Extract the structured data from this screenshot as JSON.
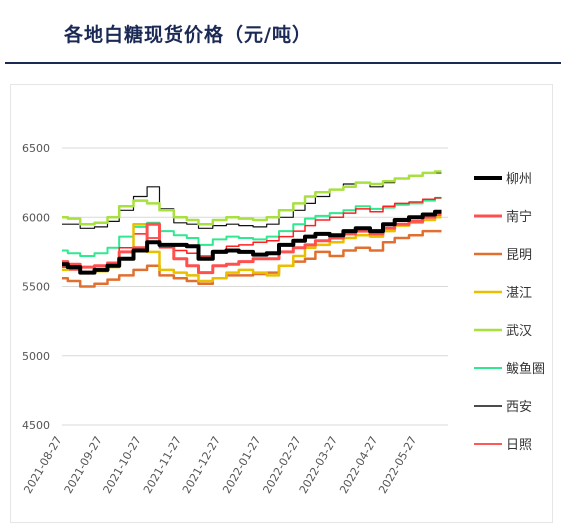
{
  "header": {
    "title": "各地白糖现货价格（元/吨）"
  },
  "chart_data": {
    "type": "line",
    "title": "各地白糖现货价格（元/吨）",
    "ylim": [
      4500,
      6500
    ],
    "yticks": [
      4500,
      5000,
      5500,
      6000,
      6500
    ],
    "xlim": [
      "2021-08-27",
      "2022-06-20"
    ],
    "xticks": [
      "2021-08-27",
      "2021-09-27",
      "2021-10-27",
      "2021-11-27",
      "2021-12-27",
      "2022-01-27",
      "2022-02-27",
      "2022-03-27",
      "2022-04-27",
      "2022-05-27"
    ],
    "grid": "horizontal",
    "legend_position": "right",
    "x": [
      "2021-08-27",
      "2021-09-05",
      "2021-09-15",
      "2021-09-27",
      "2021-10-05",
      "2021-10-15",
      "2021-10-27",
      "2021-11-05",
      "2021-11-15",
      "2021-11-27",
      "2021-12-05",
      "2021-12-15",
      "2021-12-27",
      "2022-01-05",
      "2022-01-15",
      "2022-01-27",
      "2022-02-05",
      "2022-02-15",
      "2022-02-27",
      "2022-03-05",
      "2022-03-15",
      "2022-03-27",
      "2022-04-05",
      "2022-04-15",
      "2022-04-27",
      "2022-05-05",
      "2022-05-15",
      "2022-05-27",
      "2022-06-05",
      "2022-06-15"
    ],
    "series": [
      {
        "name": "柳州",
        "color": "#000000",
        "width": 4,
        "values": [
          5660,
          5640,
          5600,
          5620,
          5650,
          5700,
          5760,
          5820,
          5800,
          5800,
          5790,
          5700,
          5750,
          5760,
          5750,
          5730,
          5740,
          5800,
          5830,
          5860,
          5880,
          5870,
          5900,
          5920,
          5900,
          5950,
          5980,
          6000,
          6020,
          6040
        ]
      },
      {
        "name": "南宁",
        "color": "#ff5050",
        "width": 3,
        "values": [
          5680,
          5660,
          5640,
          5650,
          5670,
          5750,
          5780,
          5950,
          5800,
          5700,
          5650,
          5600,
          5650,
          5660,
          5680,
          5700,
          5700,
          5750,
          5780,
          5800,
          5830,
          5850,
          5880,
          5900,
          5880,
          5920,
          5950,
          5970,
          6000,
          6020
        ]
      },
      {
        "name": "昆明",
        "color": "#e07030",
        "width": 2.5,
        "values": [
          5560,
          5540,
          5500,
          5520,
          5550,
          5580,
          5620,
          5650,
          5580,
          5560,
          5540,
          5520,
          5560,
          5580,
          5580,
          5590,
          5600,
          5650,
          5680,
          5700,
          5750,
          5720,
          5760,
          5780,
          5760,
          5820,
          5850,
          5870,
          5900,
          5900
        ]
      },
      {
        "name": "湛江",
        "color": "#e8c000",
        "width": 2.5,
        "values": [
          5620,
          5650,
          5600,
          5610,
          5640,
          5700,
          5950,
          5750,
          5620,
          5600,
          5580,
          5540,
          5560,
          5600,
          5620,
          5600,
          5580,
          5650,
          5720,
          5780,
          5800,
          5820,
          5850,
          5870,
          5860,
          5900,
          5940,
          5960,
          5980,
          6000
        ]
      },
      {
        "name": "武汉",
        "color": "#a8e040",
        "width": 2.5,
        "values": [
          6000,
          5990,
          5950,
          5960,
          6000,
          6080,
          6120,
          6100,
          6050,
          6000,
          5980,
          5950,
          5980,
          6000,
          5990,
          5980,
          6000,
          6050,
          6100,
          6150,
          6180,
          6200,
          6220,
          6250,
          6240,
          6260,
          6280,
          6300,
          6320,
          6330
        ]
      },
      {
        "name": "鲅鱼圈",
        "color": "#30e890",
        "width": 2,
        "values": [
          5760,
          5740,
          5720,
          5740,
          5780,
          5860,
          5930,
          5960,
          5900,
          5870,
          5850,
          5800,
          5840,
          5860,
          5850,
          5840,
          5860,
          5900,
          5950,
          5990,
          6010,
          6030,
          6050,
          6080,
          6060,
          6070,
          6090,
          6100,
          6120,
          6140
        ]
      },
      {
        "name": "西安",
        "color": "#111111",
        "width": 1.2,
        "values": [
          5950,
          5950,
          5920,
          5930,
          5970,
          6050,
          6150,
          6220,
          6060,
          5960,
          5950,
          5920,
          5940,
          5950,
          5940,
          5930,
          5950,
          6000,
          6050,
          6100,
          6150,
          6200,
          6240,
          6250,
          6220,
          6250,
          6280,
          6300,
          6320,
          6320
        ]
      },
      {
        "name": "日照",
        "color": "#ff2020",
        "width": 1.5,
        "values": [
          5640,
          5620,
          5600,
          5610,
          5640,
          5780,
          5880,
          5850,
          5780,
          5760,
          5740,
          5720,
          5760,
          5790,
          5800,
          5820,
          5830,
          5860,
          5900,
          5940,
          5980,
          6000,
          6030,
          6060,
          6040,
          6080,
          6100,
          6110,
          6130,
          6140
        ]
      }
    ]
  }
}
